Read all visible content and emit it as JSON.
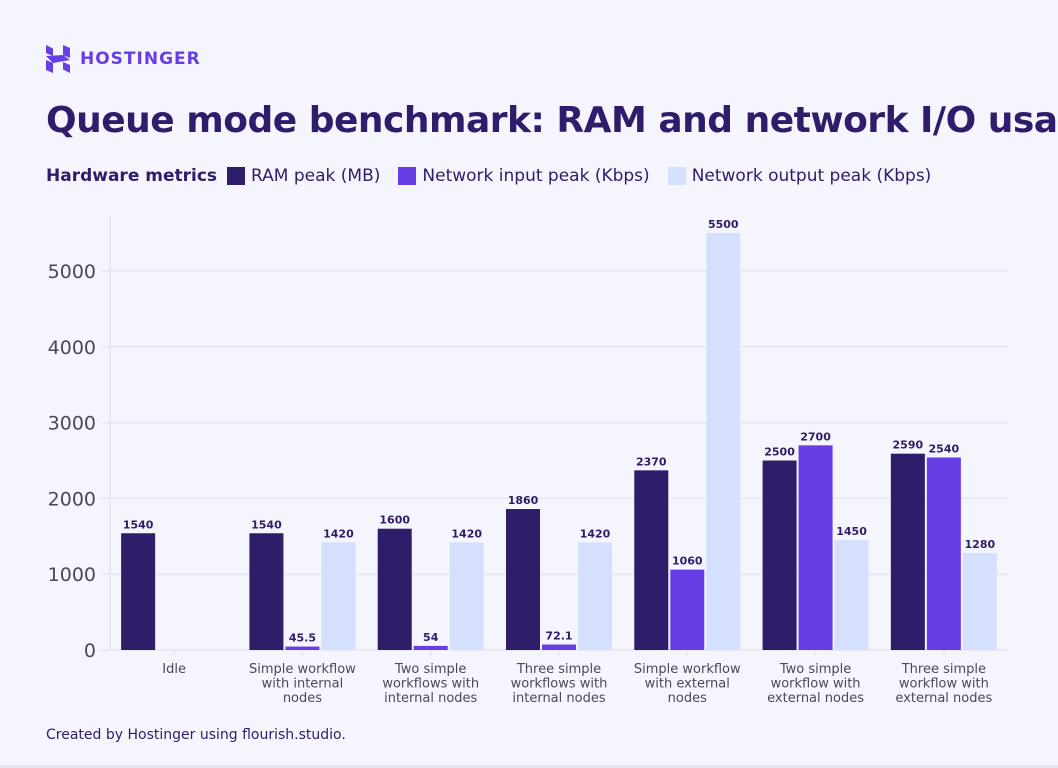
{
  "brand": {
    "name": "HOSTINGER",
    "logo_icon": "hostinger-h-logo",
    "color": "#673de6"
  },
  "title": "Queue mode benchmark: RAM and network I/O usage",
  "legend": {
    "title": "Hardware metrics"
  },
  "footer": "Created by Hostinger using flourish.studio.",
  "chart_data": {
    "type": "bar",
    "title": "Queue mode benchmark: RAM and network I/O usage",
    "categories": [
      "Idle",
      "Simple workflow with internal nodes",
      "Two simple workflows with internal nodes",
      "Three simple workflows with internal nodes",
      "Simple workflow with external nodes",
      "Two simple workflow with external nodes",
      "Three simple workflow with external nodes"
    ],
    "category_lines": [
      [
        "Idle"
      ],
      [
        "Simple workflow",
        "with internal",
        "nodes"
      ],
      [
        "Two simple",
        "workflows with",
        "internal nodes"
      ],
      [
        "Three simple",
        "workflows with",
        "internal nodes"
      ],
      [
        "Simple workflow",
        "with external",
        "nodes"
      ],
      [
        "Two simple",
        "workflow with",
        "external nodes"
      ],
      [
        "Three simple",
        "workflow with",
        "external nodes"
      ]
    ],
    "series": [
      {
        "name": "RAM peak (MB)",
        "color": "#2f1c6a",
        "values": [
          1540,
          1540,
          1600,
          1860,
          2370,
          2500,
          2590
        ]
      },
      {
        "name": "Network input peak (Kbps)",
        "color": "#673de6",
        "values": [
          null,
          45.5,
          54,
          72.1,
          1060,
          2700,
          2540
        ]
      },
      {
        "name": "Network output peak (Kbps)",
        "color": "#d5dfff",
        "values": [
          null,
          1420,
          1420,
          1420,
          5500,
          1450,
          1280
        ]
      }
    ],
    "yticks": [
      0,
      1000,
      2000,
      3000,
      4000,
      5000
    ],
    "ylim": [
      0,
      5700
    ],
    "grid": true,
    "legend_position": "top-left",
    "xlabel": "",
    "ylabel": ""
  }
}
